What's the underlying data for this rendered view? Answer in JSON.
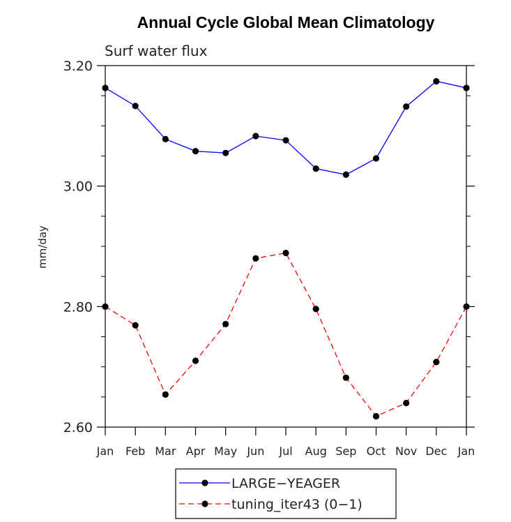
{
  "chart_data": {
    "type": "line",
    "title": "Annual Cycle Global Mean Climatology",
    "subtitle": "Surf water flux",
    "xlabel": "",
    "ylabel": "mm/day",
    "categories": [
      "Jan",
      "Feb",
      "Mar",
      "Apr",
      "May",
      "Jun",
      "Jul",
      "Aug",
      "Sep",
      "Oct",
      "Nov",
      "Dec",
      "Jan"
    ],
    "ylim": [
      2.6,
      3.2
    ],
    "yticks": [
      2.6,
      2.8,
      3.0,
      3.2
    ],
    "ytick_labels": [
      "2.60",
      "2.80",
      "3.00",
      "3.20"
    ],
    "yminor_step": 0.05,
    "grid": false,
    "legend_position": "bottom-center",
    "series": [
      {
        "name": "LARGE−YEAGER",
        "color": "#0000ff",
        "dash": "solid",
        "values": [
          3.163,
          3.133,
          3.078,
          3.058,
          3.055,
          3.083,
          3.076,
          3.029,
          3.019,
          3.046,
          3.132,
          3.174,
          3.163
        ]
      },
      {
        "name": "tuning_iter43 (0−1)",
        "color": "#ff0000",
        "dash": "dashed",
        "values": [
          2.8,
          2.769,
          2.654,
          2.71,
          2.771,
          2.88,
          2.889,
          2.796,
          2.682,
          2.618,
          2.64,
          2.708,
          2.8
        ]
      }
    ]
  }
}
